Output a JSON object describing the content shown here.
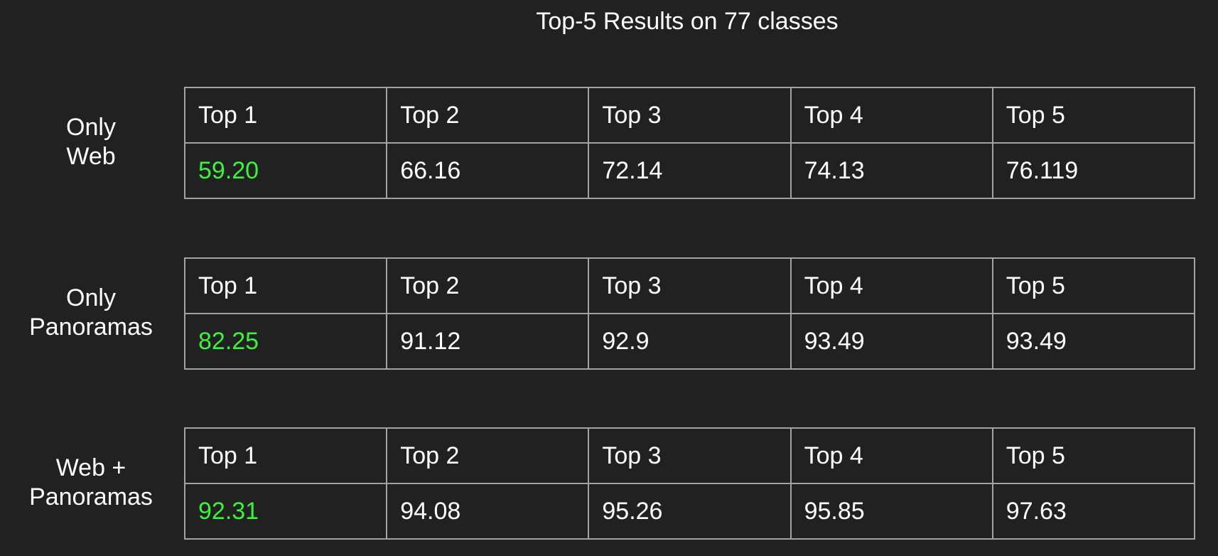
{
  "chart_data": {
    "type": "table",
    "title": "Top-5 Results on 77 classes",
    "columns": [
      "Top 1",
      "Top 2",
      "Top 3",
      "Top 4",
      "Top 5"
    ],
    "rows": [
      {
        "label": [
          "Only",
          "Web"
        ],
        "values": [
          "59.20",
          "66.16",
          "72.14",
          "74.13",
          "76.119"
        ]
      },
      {
        "label": [
          "Only",
          "Panoramas"
        ],
        "values": [
          "82.25",
          "91.12",
          "92.9",
          "93.49",
          "93.49"
        ]
      },
      {
        "label": [
          "Web +",
          "Panoramas"
        ],
        "values": [
          "92.31",
          "94.08",
          "95.26",
          "95.85",
          "97.63"
        ]
      }
    ],
    "highlight_color": "#3ef23b",
    "background_color": "#212121",
    "border_color": "#a3a3a3"
  }
}
